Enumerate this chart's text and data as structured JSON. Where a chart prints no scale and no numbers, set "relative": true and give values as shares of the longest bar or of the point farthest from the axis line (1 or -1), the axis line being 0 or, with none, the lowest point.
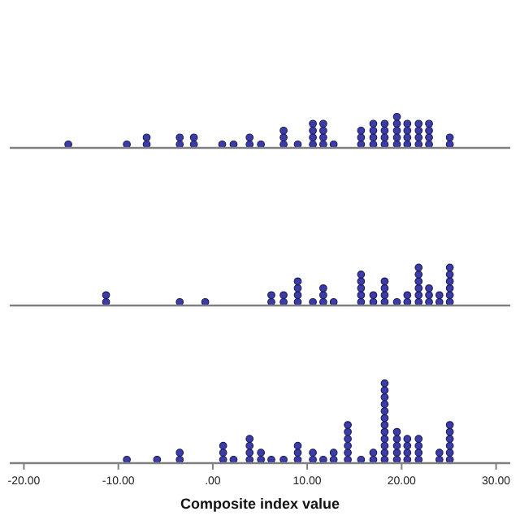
{
  "chart_data": [
    {
      "type": "scatter",
      "xlim": [
        -21.5,
        31.5
      ],
      "relative": true,
      "tick_labels": false,
      "marker": "circle",
      "series": [
        {
          "color": "#3c3ca8",
          "x": [
            -15.3,
            -9.1,
            -7.0,
            -7.0,
            -3.5,
            -3.5,
            -2.0,
            -2.0,
            1.0,
            2.2,
            3.9,
            3.9,
            5.1,
            7.5,
            7.5,
            7.5,
            9.0,
            10.6,
            10.6,
            10.6,
            10.6,
            11.7,
            11.7,
            11.7,
            11.7,
            12.8,
            15.7,
            15.7,
            15.7,
            17.0,
            17.0,
            17.0,
            17.0,
            18.2,
            18.2,
            18.2,
            18.2,
            19.5,
            19.5,
            19.5,
            19.5,
            19.5,
            20.6,
            20.6,
            20.6,
            20.6,
            21.8,
            21.8,
            21.8,
            21.8,
            22.9,
            22.9,
            22.9,
            22.9,
            25.1,
            25.1
          ],
          "values": [
            0.2,
            0.2,
            0.2,
            0.4,
            0.2,
            0.4,
            0.2,
            0.4,
            0.2,
            0.2,
            0.2,
            0.4,
            0.2,
            0.2,
            0.4,
            0.6,
            0.2,
            0.2,
            0.4,
            0.6,
            0.8,
            0.2,
            0.4,
            0.6,
            0.8,
            0.2,
            0.2,
            0.4,
            0.6,
            0.2,
            0.4,
            0.6,
            0.8,
            0.2,
            0.4,
            0.6,
            0.8,
            0.2,
            0.4,
            0.6,
            0.8,
            1,
            0.2,
            0.4,
            0.6,
            0.8,
            0.2,
            0.4,
            0.6,
            0.8,
            0.2,
            0.4,
            0.6,
            0.8,
            0.2,
            0.4
          ]
        }
      ]
    },
    {
      "type": "scatter",
      "xlim": [
        -21.5,
        31.5
      ],
      "relative": true,
      "tick_labels": false,
      "marker": "circle",
      "series": [
        {
          "color": "#3c3ca8",
          "x": [
            -11.3,
            -11.3,
            -3.5,
            -0.8,
            6.2,
            6.2,
            7.5,
            7.5,
            9.0,
            9.0,
            9.0,
            9.0,
            10.6,
            11.7,
            11.7,
            11.7,
            12.8,
            15.7,
            15.7,
            15.7,
            15.7,
            15.7,
            17.0,
            17.0,
            18.2,
            18.2,
            18.2,
            18.2,
            19.5,
            20.6,
            20.6,
            21.8,
            21.8,
            21.8,
            21.8,
            21.8,
            21.8,
            22.9,
            22.9,
            22.9,
            24.0,
            24.0,
            25.1,
            25.1,
            25.1,
            25.1,
            25.1,
            25.1
          ],
          "values": [
            0.167,
            0.333,
            0.167,
            0.167,
            0.167,
            0.333,
            0.167,
            0.333,
            0.167,
            0.333,
            0.5,
            0.667,
            0.167,
            0.167,
            0.333,
            0.5,
            0.167,
            0.167,
            0.333,
            0.5,
            0.667,
            0.833,
            0.167,
            0.333,
            0.167,
            0.333,
            0.5,
            0.667,
            0.167,
            0.167,
            0.333,
            0.167,
            0.333,
            0.5,
            0.667,
            0.833,
            1,
            0.167,
            0.333,
            0.5,
            0.167,
            0.333,
            0.167,
            0.333,
            0.5,
            0.667,
            0.833,
            1
          ]
        }
      ]
    },
    {
      "type": "scatter",
      "xlabel": "Composite index value",
      "xlim": [
        -21.5,
        31.5
      ],
      "relative": true,
      "tick_labels": "x",
      "marker": "circle",
      "xticks": [
        {
          "value": -20,
          "label": "-20.00"
        },
        {
          "value": -10,
          "label": "-10.00"
        },
        {
          "value": 0,
          "label": ".00"
        },
        {
          "value": 10,
          "label": "10.00"
        },
        {
          "value": 20,
          "label": "20.00"
        },
        {
          "value": 30,
          "label": "30.00"
        }
      ],
      "series": [
        {
          "color": "#3c3ca8",
          "x": [
            -9.1,
            -5.9,
            -3.5,
            -3.5,
            1.1,
            1.1,
            1.1,
            2.2,
            3.9,
            3.9,
            3.9,
            3.9,
            5.1,
            5.1,
            6.2,
            7.5,
            9.0,
            9.0,
            9.0,
            10.6,
            10.6,
            11.7,
            12.8,
            12.8,
            14.3,
            14.3,
            14.3,
            14.3,
            14.3,
            14.3,
            15.7,
            17.0,
            17.0,
            18.2,
            18.2,
            18.2,
            18.2,
            18.2,
            18.2,
            18.2,
            18.2,
            18.2,
            18.2,
            18.2,
            18.2,
            19.5,
            19.5,
            19.5,
            19.5,
            19.5,
            20.6,
            20.6,
            20.6,
            20.6,
            21.8,
            21.8,
            21.8,
            21.8,
            24.0,
            24.0,
            25.1,
            25.1,
            25.1,
            25.1,
            25.1,
            25.1
          ],
          "values": [
            0.083,
            0.083,
            0.083,
            0.167,
            0.083,
            0.167,
            0.25,
            0.083,
            0.083,
            0.167,
            0.25,
            0.333,
            0.083,
            0.167,
            0.083,
            0.083,
            0.083,
            0.167,
            0.25,
            0.083,
            0.167,
            0.083,
            0.083,
            0.167,
            0.083,
            0.167,
            0.25,
            0.333,
            0.417,
            0.5,
            0.083,
            0.083,
            0.167,
            0.083,
            0.167,
            0.25,
            0.333,
            0.417,
            0.5,
            0.583,
            0.667,
            0.75,
            0.833,
            0.917,
            1,
            0.083,
            0.167,
            0.25,
            0.333,
            0.417,
            0.083,
            0.167,
            0.25,
            0.333,
            0.083,
            0.167,
            0.25,
            0.333,
            0.083,
            0.167,
            0.083,
            0.167,
            0.25,
            0.333,
            0.417,
            0.5
          ]
        }
      ]
    }
  ]
}
